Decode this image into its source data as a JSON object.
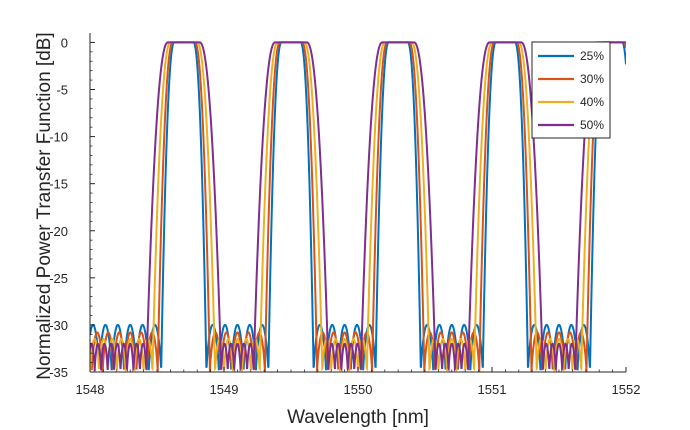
{
  "chart_data": {
    "type": "line",
    "xlabel": "Wavelength [nm]",
    "ylabel": "Normalized Power Transfer Function [dB]",
    "xlim": [
      1548,
      1552
    ],
    "ylim": [
      -35,
      1
    ],
    "xticks": [
      "1548",
      "1549",
      "1550",
      "1551",
      "1552"
    ],
    "yticks": [
      "0",
      "-5",
      "-10",
      "-15",
      "-20",
      "-25",
      "-30",
      "-35"
    ],
    "grid": false,
    "legend_position": "top-right",
    "fsr_nm": 0.8,
    "channel_centers_nm": [
      1548.7,
      1549.5,
      1550.3,
      1551.1,
      1551.9
    ],
    "series": [
      {
        "name": "25%",
        "color": "#0072BD",
        "passband_width_nm": 0.26,
        "sidelobe_peak_db": -30
      },
      {
        "name": "30%",
        "color": "#D95319",
        "passband_width_nm": 0.3,
        "sidelobe_peak_db": -30.8
      },
      {
        "name": "40%",
        "color": "#EDB120",
        "passband_width_nm": 0.36,
        "sidelobe_peak_db": -31.5
      },
      {
        "name": "50%",
        "color": "#7E2F8E",
        "passband_width_nm": 0.43,
        "sidelobe_peak_db": -32
      }
    ]
  }
}
